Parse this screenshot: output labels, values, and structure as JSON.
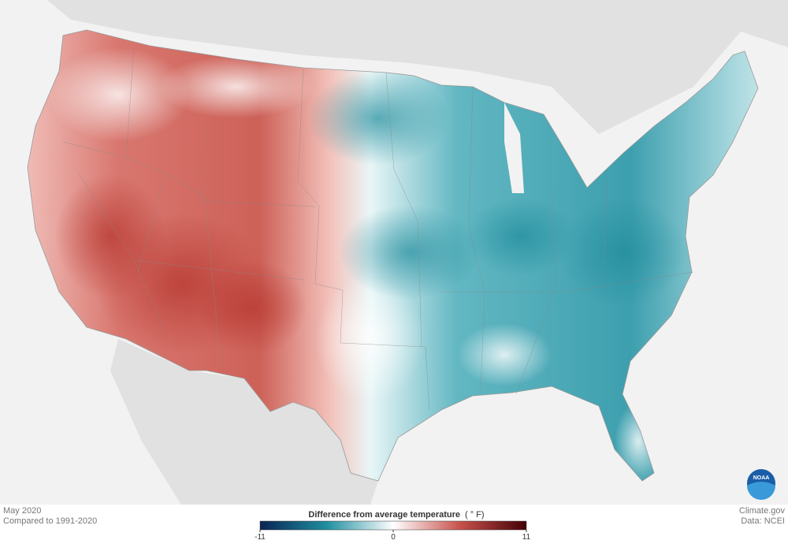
{
  "header": {
    "month": "May 2020",
    "baseline": "Compared to 1991-2020"
  },
  "legend": {
    "title": "Difference from average temperature",
    "unit": "( ° F)",
    "range": [
      -11,
      11
    ],
    "ticks": [
      -11,
      0,
      11
    ],
    "colors": [
      "#0b2353",
      "#1f8fa0",
      "#ffffff",
      "#c8524c",
      "#450006"
    ]
  },
  "credits": {
    "source": "Climate.gov",
    "data": "Data: NCEI",
    "logo": "NOAA"
  }
}
